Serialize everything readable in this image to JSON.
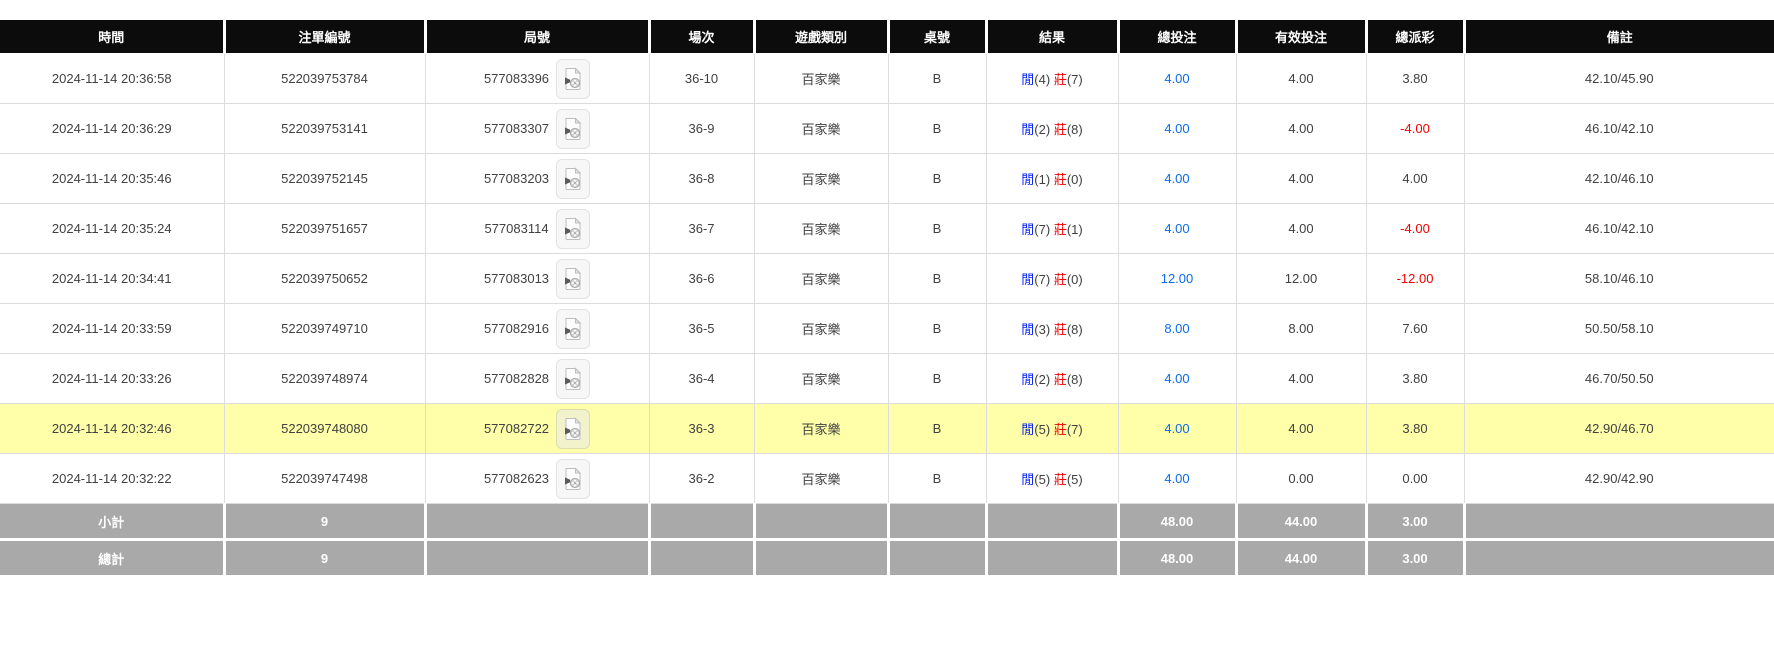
{
  "colors": {
    "header_bg": "#0c0c0c",
    "row_border": "#dcdcdc",
    "highlight": "#ffffaa",
    "summary_bg": "#a9a9a9",
    "player_blue": "#0521f0",
    "banker_red": "#f20000",
    "amount_blue": "#0b6bf0",
    "negative_red": "#f20000",
    "text": "#404040"
  },
  "icons": {
    "round_replay": "video-replay-icon"
  },
  "table": {
    "columns": [
      {
        "key": "time",
        "label": "時間"
      },
      {
        "key": "bet-id",
        "label": "注單編號"
      },
      {
        "key": "round",
        "label": "局號"
      },
      {
        "key": "session",
        "label": "場次"
      },
      {
        "key": "game-type",
        "label": "遊戲類別"
      },
      {
        "key": "table-no",
        "label": "桌號"
      },
      {
        "key": "result",
        "label": "結果"
      },
      {
        "key": "total-bet",
        "label": "總投注"
      },
      {
        "key": "valid-bet",
        "label": "有效投注"
      },
      {
        "key": "payout",
        "label": "總派彩"
      },
      {
        "key": "remark",
        "label": "備註"
      }
    ],
    "rows": [
      {
        "time": "2024-11-14 20:36:58",
        "bet_id": "522039753784",
        "round": "577083396",
        "session": "36-10",
        "game": "百家樂",
        "table_no": "B",
        "result": {
          "player_label": "閒",
          "player_value": "(4)",
          "banker_label": "莊",
          "banker_value": "(7)"
        },
        "total_bet": "4.00",
        "valid_bet": "4.00",
        "payout": "3.80",
        "remark": "42.10/45.90",
        "highlighted": false
      },
      {
        "time": "2024-11-14 20:36:29",
        "bet_id": "522039753141",
        "round": "577083307",
        "session": "36-9",
        "game": "百家樂",
        "table_no": "B",
        "result": {
          "player_label": "閒",
          "player_value": "(2)",
          "banker_label": "莊",
          "banker_value": "(8)"
        },
        "total_bet": "4.00",
        "valid_bet": "4.00",
        "payout": "-4.00",
        "remark": "46.10/42.10",
        "highlighted": false
      },
      {
        "time": "2024-11-14 20:35:46",
        "bet_id": "522039752145",
        "round": "577083203",
        "session": "36-8",
        "game": "百家樂",
        "table_no": "B",
        "result": {
          "player_label": "閒",
          "player_value": "(1)",
          "banker_label": "莊",
          "banker_value": "(0)"
        },
        "total_bet": "4.00",
        "valid_bet": "4.00",
        "payout": "4.00",
        "remark": "42.10/46.10",
        "highlighted": false
      },
      {
        "time": "2024-11-14 20:35:24",
        "bet_id": "522039751657",
        "round": "577083114",
        "session": "36-7",
        "game": "百家樂",
        "table_no": "B",
        "result": {
          "player_label": "閒",
          "player_value": "(7)",
          "banker_label": "莊",
          "banker_value": "(1)"
        },
        "total_bet": "4.00",
        "valid_bet": "4.00",
        "payout": "-4.00",
        "remark": "46.10/42.10",
        "highlighted": false
      },
      {
        "time": "2024-11-14 20:34:41",
        "bet_id": "522039750652",
        "round": "577083013",
        "session": "36-6",
        "game": "百家樂",
        "table_no": "B",
        "result": {
          "player_label": "閒",
          "player_value": "(7)",
          "banker_label": "莊",
          "banker_value": "(0)"
        },
        "total_bet": "12.00",
        "valid_bet": "12.00",
        "payout": "-12.00",
        "remark": "58.10/46.10",
        "highlighted": false
      },
      {
        "time": "2024-11-14 20:33:59",
        "bet_id": "522039749710",
        "round": "577082916",
        "session": "36-5",
        "game": "百家樂",
        "table_no": "B",
        "result": {
          "player_label": "閒",
          "player_value": "(3)",
          "banker_label": "莊",
          "banker_value": "(8)"
        },
        "total_bet": "8.00",
        "valid_bet": "8.00",
        "payout": "7.60",
        "remark": "50.50/58.10",
        "highlighted": false
      },
      {
        "time": "2024-11-14 20:33:26",
        "bet_id": "522039748974",
        "round": "577082828",
        "session": "36-4",
        "game": "百家樂",
        "table_no": "B",
        "result": {
          "player_label": "閒",
          "player_value": "(2)",
          "banker_label": "莊",
          "banker_value": "(8)"
        },
        "total_bet": "4.00",
        "valid_bet": "4.00",
        "payout": "3.80",
        "remark": "46.70/50.50",
        "highlighted": false
      },
      {
        "time": "2024-11-14 20:32:46",
        "bet_id": "522039748080",
        "round": "577082722",
        "session": "36-3",
        "game": "百家樂",
        "table_no": "B",
        "result": {
          "player_label": "閒",
          "player_value": "(5)",
          "banker_label": "莊",
          "banker_value": "(7)"
        },
        "total_bet": "4.00",
        "valid_bet": "4.00",
        "payout": "3.80",
        "remark": "42.90/46.70",
        "highlighted": true
      },
      {
        "time": "2024-11-14 20:32:22",
        "bet_id": "522039747498",
        "round": "577082623",
        "session": "36-2",
        "game": "百家樂",
        "table_no": "B",
        "result": {
          "player_label": "閒",
          "player_value": "(5)",
          "banker_label": "莊",
          "banker_value": "(5)"
        },
        "total_bet": "4.00",
        "valid_bet": "0.00",
        "payout": "0.00",
        "remark": "42.90/42.90",
        "highlighted": false
      }
    ],
    "summary": [
      {
        "key": "subtotal",
        "label": "小計",
        "count": "9",
        "total_bet": "48.00",
        "valid_bet": "44.00",
        "payout": "3.00"
      },
      {
        "key": "grand-total",
        "label": "總計",
        "count": "9",
        "total_bet": "48.00",
        "valid_bet": "44.00",
        "payout": "3.00"
      }
    ]
  }
}
